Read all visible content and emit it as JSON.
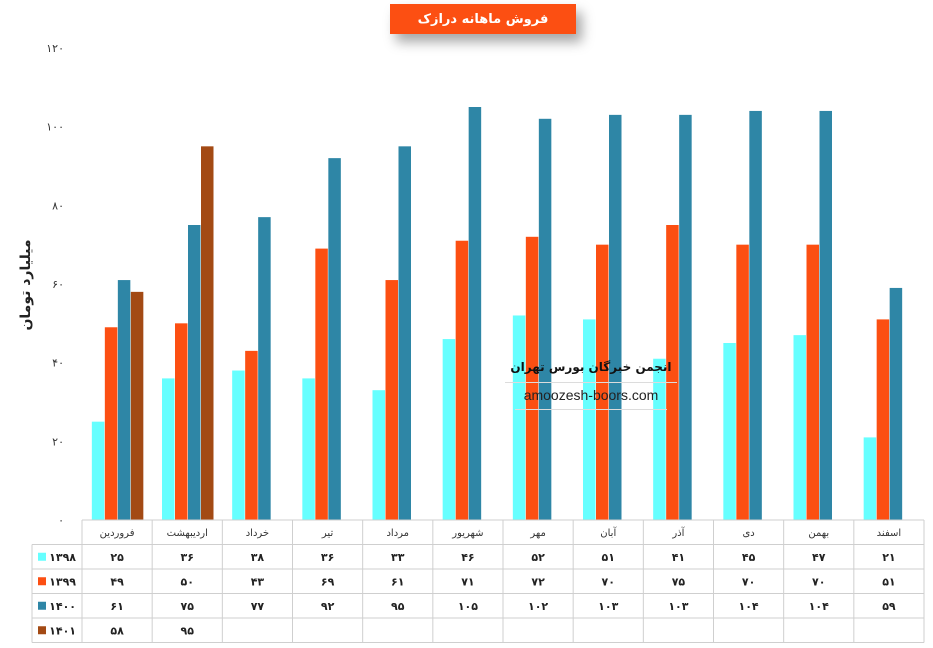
{
  "title": "فروش ماهانه درازک",
  "watermark": {
    "title": "انجمن خبرگان بورس تهران",
    "url": "amoozesh-boors.com"
  },
  "chart_data": {
    "type": "bar",
    "title": "فروش ماهانه درازک",
    "ylabel": "میلیارد تومان",
    "xlabel": "",
    "ylim": [
      0,
      120
    ],
    "yticks": [
      0,
      20,
      40,
      60,
      80,
      100,
      120
    ],
    "ytick_labels": [
      "۰",
      "۲۰",
      "۴۰",
      "۶۰",
      "۸۰",
      "۱۰۰",
      "۱۲۰"
    ],
    "grid": false,
    "legend": "table-left",
    "categories": [
      "فروردین",
      "اردیبهشت",
      "خرداد",
      "تیر",
      "مرداد",
      "شهریور",
      "مهر",
      "آبان",
      "آذر",
      "دی",
      "بهمن",
      "اسفند"
    ],
    "series": [
      {
        "name": "۱۳۹۸",
        "color": "#66ffff",
        "values": [
          25,
          36,
          38,
          36,
          33,
          46,
          52,
          51,
          41,
          45,
          47,
          21
        ],
        "labels": [
          "۲۵",
          "۳۶",
          "۳۸",
          "۳۶",
          "۳۳",
          "۴۶",
          "۵۲",
          "۵۱",
          "۴۱",
          "۴۵",
          "۴۷",
          "۲۱"
        ]
      },
      {
        "name": "۱۳۹۹",
        "color": "#fc4f12",
        "values": [
          49,
          50,
          43,
          69,
          61,
          71,
          72,
          70,
          75,
          70,
          70,
          51
        ],
        "labels": [
          "۴۹",
          "۵۰",
          "۴۳",
          "۶۹",
          "۶۱",
          "۷۱",
          "۷۲",
          "۷۰",
          "۷۵",
          "۷۰",
          "۷۰",
          "۵۱"
        ]
      },
      {
        "name": "۱۴۰۰",
        "color": "#2e86a6",
        "values": [
          61,
          75,
          77,
          92,
          95,
          105,
          102,
          103,
          103,
          104,
          104,
          59
        ],
        "labels": [
          "۶۱",
          "۷۵",
          "۷۷",
          "۹۲",
          "۹۵",
          "۱۰۵",
          "۱۰۲",
          "۱۰۳",
          "۱۰۳",
          "۱۰۴",
          "۱۰۴",
          "۵۹"
        ]
      },
      {
        "name": "۱۴۰۱",
        "color": "#a34a14",
        "values": [
          58,
          95,
          null,
          null,
          null,
          null,
          null,
          null,
          null,
          null,
          null,
          null
        ],
        "labels": [
          "۵۸",
          "۹۵",
          "",
          "",
          "",
          "",
          "",
          "",
          "",
          "",
          "",
          ""
        ]
      }
    ]
  }
}
